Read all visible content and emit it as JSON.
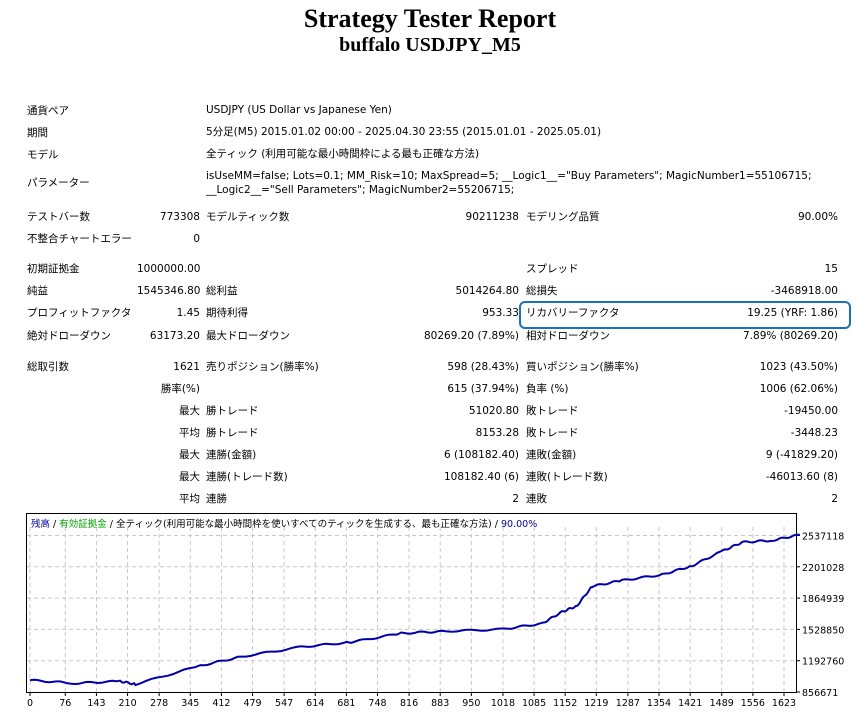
{
  "header": {
    "title": "Strategy Tester Report",
    "subtitle": "buffalo USDJPY_M5"
  },
  "info": [
    {
      "label": "通貨ペア",
      "value": "USDJPY (US Dollar vs Japanese Yen)"
    },
    {
      "label": "期間",
      "value": "5分足(M5) 2015.01.02 00:00 - 2025.04.30 23:55 (2015.01.01 - 2025.05.01)"
    },
    {
      "label": "モデル",
      "value": "全ティック (利用可能な最小時間枠による最も正確な方法)"
    },
    {
      "label": "パラメーター",
      "value": "isUseMM=false; Lots=0.1; MM_Risk=10; MaxSpread=5; __Logic1__=\"Buy Parameters\"; MagicNumber1=55106715; __Logic2__=\"Sell Parameters\"; MagicNumber2=55206715;"
    }
  ],
  "stats": [
    [
      "テストバー数",
      "773308",
      "モデルティック数",
      "90211238",
      "モデリング品質",
      "90.00%"
    ],
    [
      "不整合チャートエラー",
      "0",
      "",
      "",
      "",
      ""
    ],
    [
      "初期証拠金",
      "1000000.00",
      "",
      "",
      "スプレッド",
      "15"
    ],
    [
      "純益",
      "1545346.80",
      "総利益",
      "5014264.80",
      "総損失",
      "-3468918.00"
    ],
    [
      "プロフィットファクタ",
      "1.45",
      "期待利得",
      "953.33",
      "リカバリーファクタ",
      "19.25 (YRF: 1.86)"
    ],
    [
      "絶対ドローダウン",
      "63173.20",
      "最大ドローダウン",
      "80269.20 (7.89%)",
      "相対ドローダウン",
      "7.89% (80269.20)"
    ],
    [
      "総取引数",
      "1621",
      "売りポジション(勝率%)",
      "598 (28.43%)",
      "買いポジション(勝率%)",
      "1023 (43.50%)"
    ],
    [
      "",
      "勝率(%)",
      "",
      "615 (37.94%)",
      "負率 (%)",
      "1006 (62.06%)"
    ],
    [
      "",
      "最大",
      "勝トレード",
      "51020.80",
      "敗トレード",
      "-19450.00"
    ],
    [
      "",
      "平均",
      "勝トレード",
      "8153.28",
      "敗トレード",
      "-3448.23"
    ],
    [
      "",
      "最大",
      "連勝(金額)",
      "6 (108182.40)",
      "連敗(金額)",
      "9 (-41829.20)"
    ],
    [
      "",
      "最大",
      "連勝(トレード数)",
      "108182.40 (6)",
      "連敗(トレード数)",
      "-46013.60 (8)"
    ],
    [
      "",
      "平均",
      "連勝",
      "2",
      "連敗",
      "2"
    ]
  ],
  "chart_data": {
    "type": "line",
    "legend": {
      "balance": "残高",
      "equity": "有効証拠金",
      "model": "全ティック(利用可能な最小時間枠を使いすべてのティックを生成する、最も正確な方法)",
      "quality": "90.00%"
    },
    "colors": {
      "balance": "#0000a8",
      "equity": "#00a000",
      "grid": "#c8c8c8"
    },
    "x_ticks": [
      "0",
      "76",
      "143",
      "210",
      "278",
      "345",
      "412",
      "479",
      "547",
      "614",
      "681",
      "748",
      "816",
      "883",
      "950",
      "1018",
      "1085",
      "1152",
      "1219",
      "1287",
      "1354",
      "1421",
      "1489",
      "1556",
      "1623"
    ],
    "y_ticks": [
      "856671",
      "1192760",
      "1528850",
      "1864939",
      "2201028",
      "2537118"
    ],
    "xlim": [
      0,
      1660
    ],
    "ylim": [
      856671,
      2600000
    ],
    "x": [
      0,
      97,
      194,
      227,
      367,
      454,
      583,
      691,
      799,
      886,
      1015,
      1102,
      1145,
      1177,
      1210,
      1274,
      1361,
      1425,
      1490,
      1533,
      1598,
      1657
    ],
    "y": [
      982700,
      951000,
      972000,
      940000,
      1140000,
      1235000,
      1340000,
      1392000,
      1487000,
      1508000,
      1529000,
      1592000,
      1717000,
      1780000,
      1991000,
      2054000,
      2117000,
      2212000,
      2369000,
      2464000,
      2485000,
      2545000
    ]
  }
}
